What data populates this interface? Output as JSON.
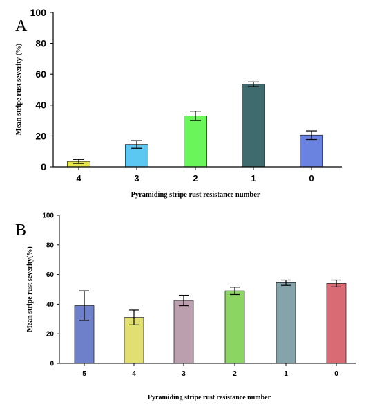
{
  "chart_data": [
    {
      "type": "bar",
      "panel_label": "A",
      "categories": [
        "4",
        "3",
        "2",
        "1",
        "0"
      ],
      "values": [
        3.5,
        14.5,
        33,
        53.5,
        20.5
      ],
      "errors": [
        1.3,
        2.5,
        3,
        1.5,
        2.8
      ],
      "colors": [
        "#E6E64C",
        "#5BC8F2",
        "#6AF55A",
        "#3F6A6E",
        "#6A82E0"
      ],
      "ylim": [
        0,
        100
      ],
      "yticks": [
        0,
        20,
        40,
        60,
        80,
        100
      ],
      "xlabel": "Pyramiding stripe rust resistance number",
      "ylabel": "Mean stripe rust severity (%)"
    },
    {
      "type": "bar",
      "panel_label": "B",
      "categories": [
        "5",
        "4",
        "3",
        "2",
        "1",
        "0"
      ],
      "values": [
        39,
        31,
        42.5,
        49,
        54.5,
        54
      ],
      "errors": [
        10,
        5,
        3.5,
        2.5,
        1.8,
        2.3
      ],
      "colors": [
        "#6D80C9",
        "#E1DE72",
        "#BC9FAF",
        "#8BD663",
        "#85A3AB",
        "#D86B74"
      ],
      "ylim": [
        0,
        100
      ],
      "yticks": [
        0,
        20,
        40,
        60,
        80,
        100
      ],
      "xlabel": "Pyramiding stripe rust resistance number",
      "ylabel": "Mean stripe rust severity(%)"
    }
  ]
}
